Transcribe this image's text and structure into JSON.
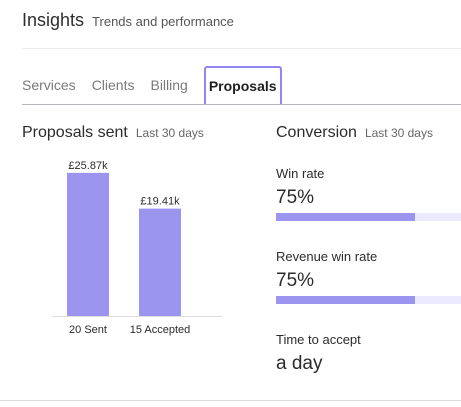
{
  "header": {
    "title": "Insights",
    "subtitle": "Trends and performance"
  },
  "tabs": [
    {
      "label": "Services"
    },
    {
      "label": "Clients"
    },
    {
      "label": "Billing"
    },
    {
      "label": "Proposals",
      "active": true
    }
  ],
  "proposals_sent": {
    "title": "Proposals sent",
    "period": "Last 30 days"
  },
  "conversion": {
    "title": "Conversion",
    "period": "Last 30 days",
    "win_rate": {
      "label": "Win rate",
      "value": "75%",
      "fraction": 0.75
    },
    "revenue_win_rate": {
      "label": "Revenue win rate",
      "value": "75%",
      "fraction": 0.75
    },
    "time_to_accept": {
      "label": "Time to accept",
      "value": "a day"
    }
  },
  "colors": {
    "accent": "#9c95ef",
    "tab_active_border": "#8f86ee"
  },
  "chart_data": {
    "type": "bar",
    "categories": [
      "20 Sent",
      "15 Accepted"
    ],
    "values": [
      25.87,
      19.41
    ],
    "data_labels": [
      "£25.87k",
      "£19.41k"
    ],
    "unit": "£k",
    "ylim": [
      0,
      30
    ],
    "grid": false
  }
}
